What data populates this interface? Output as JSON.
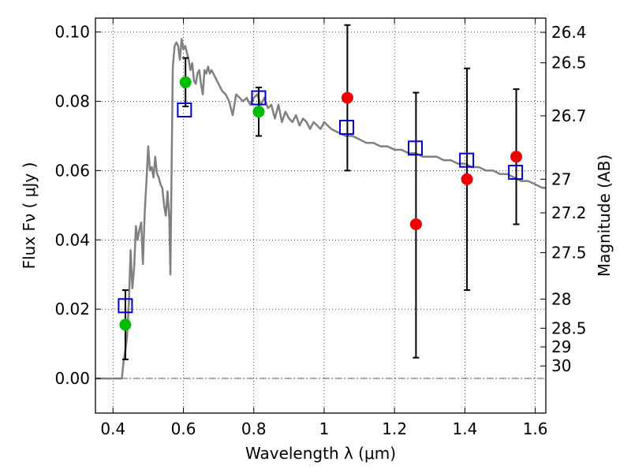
{
  "chart_data": {
    "type": "scatter",
    "xlabel": "Wavelength  λ (μm)",
    "ylabel": "Flux  Fν  ( μJy )",
    "ylabel_right": "Magnitude (AB)",
    "xlim": [
      0.35,
      1.63
    ],
    "ylim": [
      -0.01,
      0.104
    ],
    "grid": true,
    "x_ticks": [
      0.4,
      0.6,
      0.8,
      1.0,
      1.2,
      1.4,
      1.6
    ],
    "x_tick_labels": [
      "0.4",
      "0.6",
      "0.8",
      "1",
      "1.2",
      "1.4",
      "1.6"
    ],
    "y_ticks": [
      0.0,
      0.02,
      0.04,
      0.06,
      0.08,
      0.1
    ],
    "y_tick_labels": [
      "0.00",
      "0.02",
      "0.04",
      "0.06",
      "0.08",
      "0.10"
    ],
    "mag_ticks": [
      {
        "label": "26.4",
        "flux": 0.0999
      },
      {
        "label": "26.5",
        "flux": 0.0911
      },
      {
        "label": "26.7",
        "flux": 0.0758
      },
      {
        "label": "27",
        "flux": 0.0575
      },
      {
        "label": "27.2",
        "flux": 0.0478
      },
      {
        "label": "27.5",
        "flux": 0.0363
      },
      {
        "label": "28",
        "flux": 0.0229
      },
      {
        "label": "28.5",
        "flux": 0.0145
      },
      {
        "label": "29",
        "flux": 0.0091
      },
      {
        "label": "30",
        "flux": 0.0036
      }
    ],
    "colors": {
      "model": "#808080",
      "model_photometry": "#0000cc",
      "detected": "#00bb00",
      "observed_nir": "#ee0000",
      "errorbar": "#000000"
    },
    "series": [
      {
        "marker": "line",
        "x": [
          0.35,
          0.4,
          0.42,
          0.425,
          0.43,
          0.435,
          0.44,
          0.445,
          0.45,
          0.455,
          0.46,
          0.465,
          0.47,
          0.475,
          0.48,
          0.485,
          0.49,
          0.495,
          0.5,
          0.505,
          0.51,
          0.515,
          0.52,
          0.525,
          0.53,
          0.535,
          0.54,
          0.545,
          0.55,
          0.555,
          0.56,
          0.563,
          0.567,
          0.57,
          0.575,
          0.58,
          0.585,
          0.59,
          0.595,
          0.6,
          0.605,
          0.61,
          0.615,
          0.62,
          0.625,
          0.63,
          0.635,
          0.64,
          0.645,
          0.65,
          0.655,
          0.66,
          0.665,
          0.67,
          0.675,
          0.68,
          0.69,
          0.7,
          0.71,
          0.72,
          0.73,
          0.74,
          0.75,
          0.76,
          0.77,
          0.78,
          0.79,
          0.8,
          0.81,
          0.82,
          0.83,
          0.84,
          0.85,
          0.86,
          0.87,
          0.88,
          0.89,
          0.9,
          0.91,
          0.92,
          0.93,
          0.94,
          0.95,
          0.96,
          0.97,
          0.98,
          0.99,
          1.0,
          1.02,
          1.04,
          1.06,
          1.08,
          1.1,
          1.12,
          1.14,
          1.16,
          1.18,
          1.2,
          1.22,
          1.24,
          1.26,
          1.28,
          1.3,
          1.32,
          1.34,
          1.36,
          1.38,
          1.4,
          1.42,
          1.44,
          1.46,
          1.48,
          1.5,
          1.52,
          1.54,
          1.56,
          1.58,
          1.6,
          1.62,
          1.63
        ],
        "y": [
          0.0,
          0.0,
          0.0,
          0.0,
          0.005,
          0.008,
          0.012,
          0.022,
          0.037,
          0.026,
          0.032,
          0.044,
          0.04,
          0.043,
          0.045,
          0.033,
          0.048,
          0.057,
          0.067,
          0.06,
          0.061,
          0.058,
          0.064,
          0.059,
          0.058,
          0.056,
          0.055,
          0.05,
          0.047,
          0.054,
          0.046,
          0.03,
          0.065,
          0.09,
          0.096,
          0.097,
          0.096,
          0.092,
          0.098,
          0.095,
          0.096,
          0.094,
          0.092,
          0.089,
          0.091,
          0.086,
          0.085,
          0.088,
          0.089,
          0.085,
          0.082,
          0.089,
          0.088,
          0.09,
          0.088,
          0.089,
          0.087,
          0.085,
          0.083,
          0.082,
          0.08,
          0.076,
          0.082,
          0.081,
          0.08,
          0.081,
          0.079,
          0.081,
          0.082,
          0.079,
          0.081,
          0.078,
          0.079,
          0.075,
          0.079,
          0.074,
          0.077,
          0.075,
          0.074,
          0.076,
          0.073,
          0.075,
          0.074,
          0.072,
          0.074,
          0.073,
          0.072,
          0.074,
          0.072,
          0.071,
          0.07,
          0.07,
          0.069,
          0.068,
          0.068,
          0.067,
          0.067,
          0.066,
          0.066,
          0.065,
          0.065,
          0.064,
          0.064,
          0.064,
          0.063,
          0.063,
          0.062,
          0.062,
          0.061,
          0.061,
          0.06,
          0.06,
          0.059,
          0.059,
          0.058,
          0.057,
          0.057,
          0.056,
          0.055,
          0.055
        ]
      },
      {
        "marker": "open-square",
        "x": [
          0.435,
          0.603,
          0.814,
          1.064,
          1.259,
          1.405,
          1.544
        ],
        "y": [
          0.021,
          0.0775,
          0.081,
          0.0725,
          0.0665,
          0.063,
          0.0595
        ]
      },
      {
        "marker": "filled-circle",
        "x": [
          0.435,
          0.606,
          0.814
        ],
        "y": [
          0.0155,
          0.0855,
          0.077
        ],
        "yerr_low": [
          0.0055,
          0.0785,
          0.07
        ],
        "yerr_high": [
          0.0255,
          0.0925,
          0.084
        ]
      },
      {
        "marker": "filled-circle",
        "x": [
          1.066,
          1.261,
          1.406,
          1.546
        ],
        "y": [
          0.081,
          0.0445,
          0.0575,
          0.064
        ],
        "yerr_low": [
          0.06,
          0.006,
          0.0255,
          0.0445
        ],
        "yerr_high": [
          0.102,
          0.0825,
          0.0895,
          0.0835
        ]
      }
    ]
  }
}
